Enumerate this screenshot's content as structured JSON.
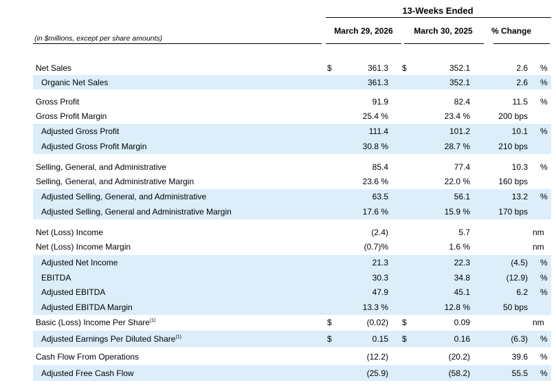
{
  "header": {
    "period": "13-Weeks Ended",
    "col1": "March 29, 2026",
    "col2": "March 30, 2025",
    "col3": "% Change",
    "note": "(in $millions, except per share amounts)"
  },
  "rows": [
    {
      "label": "Net Sales",
      "d1": "$",
      "v1": "361.3",
      "d2": "$",
      "v2": "352.1",
      "chg": "2.6",
      "unit": "%"
    },
    {
      "label": "Organic Net Sales",
      "v1": "361.3",
      "v2": "352.1",
      "chg": "2.6",
      "unit": "%"
    },
    {
      "label": "Gross Profit",
      "v1": "91.9",
      "v2": "82.4",
      "chg": "11.5",
      "unit": "%"
    },
    {
      "label": "Gross Profit Margin",
      "v1": "25.4 %",
      "v2": "23.4 %",
      "chg": "200 bps"
    },
    {
      "label": "Adjusted Gross Profit",
      "v1": "111.4",
      "v2": "101.2",
      "chg": "10.1",
      "unit": "%"
    },
    {
      "label": "Adjusted Gross Profit Margin",
      "v1": "30.8 %",
      "v2": "28.7 %",
      "chg": "210 bps"
    },
    {
      "label": "Selling, General, and Administrative",
      "v1": "85.4",
      "v2": "77.4",
      "chg": "10.3",
      "unit": "%"
    },
    {
      "label": "Selling, General, and Administrative Margin",
      "v1": "23.6 %",
      "v2": "22.0 %",
      "chg": "160 bps"
    },
    {
      "label": "Adjusted Selling, General, and Administrative",
      "v1": "63.5",
      "v2": "56.1",
      "chg": "13.2",
      "unit": "%"
    },
    {
      "label": "Adjusted Selling, General and Administrative Margin",
      "v1": "17.6 %",
      "v2": "15.9 %",
      "chg": "170 bps"
    },
    {
      "label": "Net (Loss) Income",
      "v1": "(2.4)",
      "v2": "5.7",
      "chg": "nm"
    },
    {
      "label": "Net (Loss)  Income Margin",
      "v1": "(0.7)%",
      "v2": "1.6 %",
      "chg": "nm"
    },
    {
      "label": "Adjusted Net Income",
      "v1": "21.3",
      "v2": "22.3",
      "chg": "(4.5)",
      "unit": "%"
    },
    {
      "label": "EBITDA",
      "v1": "30.3",
      "v2": "34.8",
      "chg": "(12.9)",
      "unit": "%"
    },
    {
      "label": "Adjusted EBITDA",
      "v1": "47.9",
      "v2": "45.1",
      "chg": "6.2",
      "unit": "%"
    },
    {
      "label": "Adjusted EBITDA Margin",
      "v1": "13.3 %",
      "v2": "12.8 %",
      "chg": "50 bps"
    },
    {
      "label": "Basic (Loss) Income Per Share",
      "sup": "(1)",
      "d1": "$",
      "v1": "(0.02)",
      "d2": "$",
      "v2": "0.09",
      "chg": "nm"
    },
    {
      "label": "Adjusted Earnings Per Diluted Share",
      "sup": "(1)",
      "d1": "$",
      "v1": "0.15",
      "d2": "$",
      "v2": "0.16",
      "chg": "(6.3)",
      "unit": "%"
    },
    {
      "label": "Cash Flow From Operations",
      "v1": "(12.2)",
      "v2": "(20.2)",
      "chg": "39.6",
      "unit": "%"
    },
    {
      "label": "Adjusted Free Cash Flow",
      "v1": "(25.9)",
      "v2": "(58.2)",
      "chg": "55.5",
      "unit": "%"
    }
  ]
}
